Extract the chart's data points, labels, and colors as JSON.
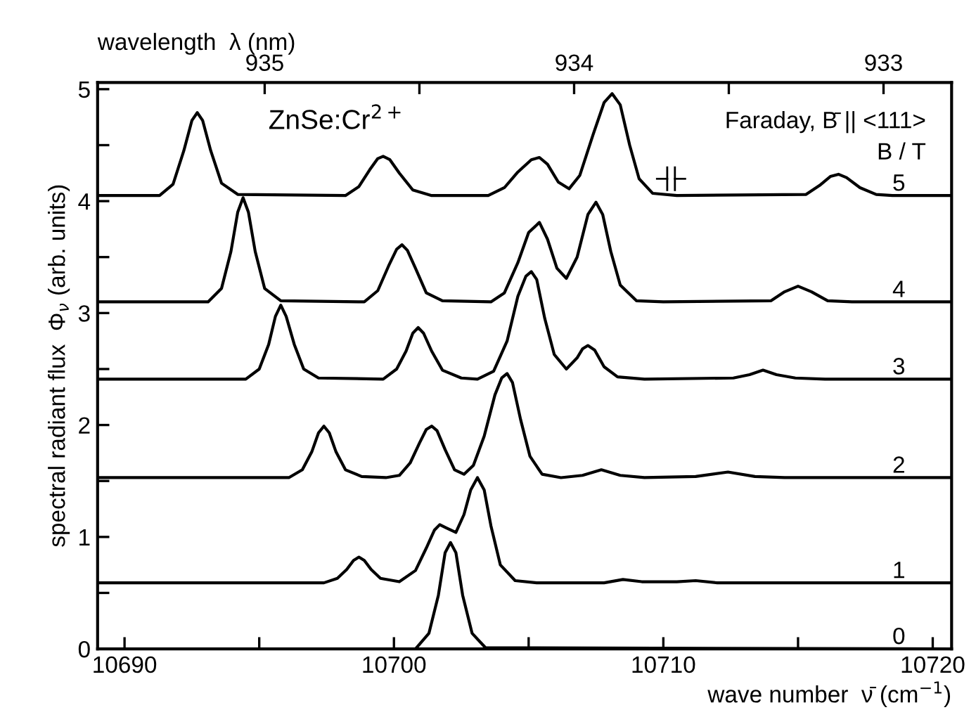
{
  "chart_data": {
    "type": "line",
    "xlabel": "wave number  ν̄ (cm$^{−1}$)",
    "ylabel": "spectral radiant flux  Φ$_{ν}$ (arb. units)",
    "x2label": "wavelength  λ (nm)",
    "annotations": [
      "ZnSe:Cr$^{2+}$",
      "Faraday, B̄ || <111>",
      "B / T"
    ],
    "xlim": [
      10689,
      10720.7
    ],
    "xticks": [
      10690,
      {
        "value": 10695,
        "label": null
      },
      10700,
      {
        "value": 10705,
        "label": null
      },
      10710,
      {
        "value": 10715,
        "label": null
      },
      10720
    ],
    "x2lim": [
      935.54,
      932.78
    ],
    "x2ticks": [
      935,
      {
        "value": 934.5,
        "label": null
      },
      934,
      {
        "value": 933.5,
        "label": null
      },
      933
    ],
    "ylim": [
      0,
      5.06
    ],
    "yticks": [
      0,
      {
        "value": 0.5,
        "label": null
      },
      1,
      {
        "value": 1.5,
        "label": null
      },
      2,
      {
        "value": 2.5,
        "label": null
      },
      3,
      {
        "value": 3.5,
        "label": null
      },
      4,
      {
        "value": 4.5,
        "label": null
      },
      5
    ],
    "grid": false,
    "legend": false,
    "marker": "none",
    "line_style": "solid",
    "series": [
      {
        "name": "0",
        "color": "#000000",
        "x": [
          10689,
          10700.8,
          10701.3,
          10701.65,
          10701.9,
          10702.1,
          10702.3,
          10702.55,
          10702.9,
          10703.4,
          10720.7
        ],
        "values": [
          0,
          0,
          0.14,
          0.48,
          0.86,
          0.95,
          0.86,
          0.48,
          0.14,
          0.01,
          0
        ]
      },
      {
        "name": "1",
        "color": "#000000",
        "x": [
          10689,
          10697.4,
          10697.9,
          10698.25,
          10698.5,
          10698.7,
          10698.9,
          10699.15,
          10699.5,
          10700.2,
          10700.8,
          10701.2,
          10701.5,
          10701.7,
          10701.95,
          10702.3,
          10702.6,
          10702.85,
          10703.1,
          10703.35,
          10703.6,
          10703.95,
          10704.5,
          10705.3,
          10707.8,
          10708.5,
          10709.2,
          10710.5,
          10711.2,
          10712,
          10720.7
        ],
        "values": [
          0.59,
          0.59,
          0.63,
          0.71,
          0.79,
          0.82,
          0.79,
          0.71,
          0.63,
          0.6,
          0.7,
          0.9,
          1.06,
          1.11,
          1.08,
          1.04,
          1.2,
          1.42,
          1.53,
          1.42,
          1.1,
          0.75,
          0.61,
          0.59,
          0.59,
          0.62,
          0.6,
          0.6,
          0.61,
          0.59,
          0.59
        ]
      },
      {
        "name": "2",
        "color": "#000000",
        "x": [
          10689,
          10696.1,
          10696.6,
          10696.95,
          10697.2,
          10697.4,
          10697.6,
          10697.85,
          10698.2,
          10698.8,
          10699.7,
          10700.2,
          10700.6,
          10700.95,
          10701.2,
          10701.4,
          10701.6,
          10701.9,
          10702.25,
          10702.6,
          10702.95,
          10703.35,
          10703.75,
          10704.0,
          10704.2,
          10704.4,
          10704.7,
          10705.05,
          10705.5,
          10706.2,
          10707.0,
          10707.7,
          10708.4,
          10709.3,
          10711.2,
          10712.4,
          10713.4,
          10714.5,
          10720.7
        ],
        "values": [
          1.53,
          1.53,
          1.6,
          1.76,
          1.93,
          1.99,
          1.93,
          1.76,
          1.6,
          1.54,
          1.53,
          1.55,
          1.66,
          1.84,
          1.96,
          1.99,
          1.95,
          1.78,
          1.6,
          1.56,
          1.64,
          1.9,
          2.27,
          2.42,
          2.46,
          2.38,
          2.05,
          1.72,
          1.56,
          1.53,
          1.55,
          1.6,
          1.55,
          1.53,
          1.54,
          1.58,
          1.54,
          1.53,
          1.53
        ]
      },
      {
        "name": "3",
        "color": "#000000",
        "x": [
          10689,
          10694.5,
          10695.0,
          10695.35,
          10695.6,
          10695.8,
          10696.0,
          10696.3,
          10696.65,
          10697.2,
          10699.6,
          10700.1,
          10700.45,
          10700.7,
          10700.9,
          10701.1,
          10701.4,
          10701.8,
          10702.5,
          10703.1,
          10703.7,
          10704.2,
          10704.6,
          10704.9,
          10705.1,
          10705.3,
          10705.6,
          10705.95,
          10706.4,
          10706.8,
          10707.0,
          10707.2,
          10707.45,
          10707.8,
          10708.3,
          10709.3,
          10712.6,
          10713.2,
          10713.7,
          10714.2,
          10714.9,
          10716,
          10720.7
        ],
        "values": [
          2.41,
          2.41,
          2.5,
          2.72,
          2.97,
          3.07,
          2.97,
          2.72,
          2.5,
          2.42,
          2.41,
          2.5,
          2.66,
          2.82,
          2.87,
          2.82,
          2.66,
          2.49,
          2.42,
          2.41,
          2.48,
          2.75,
          3.15,
          3.33,
          3.37,
          3.3,
          2.95,
          2.63,
          2.5,
          2.6,
          2.68,
          2.71,
          2.67,
          2.52,
          2.43,
          2.41,
          2.42,
          2.45,
          2.49,
          2.45,
          2.42,
          2.41,
          2.41
        ]
      },
      {
        "name": "4",
        "color": "#000000",
        "x": [
          10689,
          10693.1,
          10693.6,
          10693.95,
          10694.2,
          10694.4,
          10694.6,
          10694.85,
          10695.2,
          10695.8,
          10698.9,
          10699.4,
          10699.8,
          10700.1,
          10700.3,
          10700.5,
          10700.8,
          10701.2,
          10701.8,
          10703.6,
          10704.1,
          10704.6,
          10705.0,
          10705.4,
          10705.7,
          10706.05,
          10706.4,
          10706.8,
          10707.2,
          10707.5,
          10707.75,
          10708.05,
          10708.4,
          10709,
          10710,
          10714.0,
          10714.5,
          10715.0,
          10715.5,
          10716.1,
          10717,
          10720.7
        ],
        "values": [
          3.1,
          3.1,
          3.22,
          3.55,
          3.9,
          4.03,
          3.9,
          3.55,
          3.22,
          3.11,
          3.1,
          3.2,
          3.42,
          3.57,
          3.61,
          3.56,
          3.4,
          3.18,
          3.11,
          3.1,
          3.18,
          3.45,
          3.72,
          3.81,
          3.66,
          3.4,
          3.31,
          3.5,
          3.88,
          3.99,
          3.88,
          3.55,
          3.25,
          3.11,
          3.1,
          3.11,
          3.19,
          3.24,
          3.19,
          3.11,
          3.1,
          3.1
        ]
      },
      {
        "name": "5",
        "color": "#000000",
        "x": [
          10689,
          10691.3,
          10691.8,
          10692.2,
          10692.5,
          10692.7,
          10692.9,
          10693.2,
          10693.6,
          10694.2,
          10698.2,
          10698.7,
          10699.1,
          10699.4,
          10699.6,
          10699.85,
          10700.2,
          10700.7,
          10701.4,
          10703.5,
          10704.1,
          10704.6,
          10705.1,
          10705.4,
          10705.7,
          10706.1,
          10706.5,
          10706.9,
          10707.4,
          10707.8,
          10708.1,
          10708.4,
          10708.75,
          10709.1,
          10709.6,
          10710.5,
          10715.3,
          10715.8,
          10716.2,
          10716.5,
          10716.8,
          10717.3,
          10717.9,
          10718.5,
          10720.7
        ],
        "values": [
          4.05,
          4.05,
          4.15,
          4.45,
          4.72,
          4.79,
          4.72,
          4.45,
          4.16,
          4.06,
          4.05,
          4.13,
          4.28,
          4.38,
          4.4,
          4.37,
          4.25,
          4.1,
          4.05,
          4.05,
          4.12,
          4.26,
          4.37,
          4.39,
          4.33,
          4.17,
          4.11,
          4.23,
          4.6,
          4.88,
          4.96,
          4.86,
          4.5,
          4.2,
          4.07,
          4.05,
          4.06,
          4.14,
          4.22,
          4.24,
          4.21,
          4.12,
          4.06,
          4.05,
          4.05
        ]
      }
    ]
  }
}
